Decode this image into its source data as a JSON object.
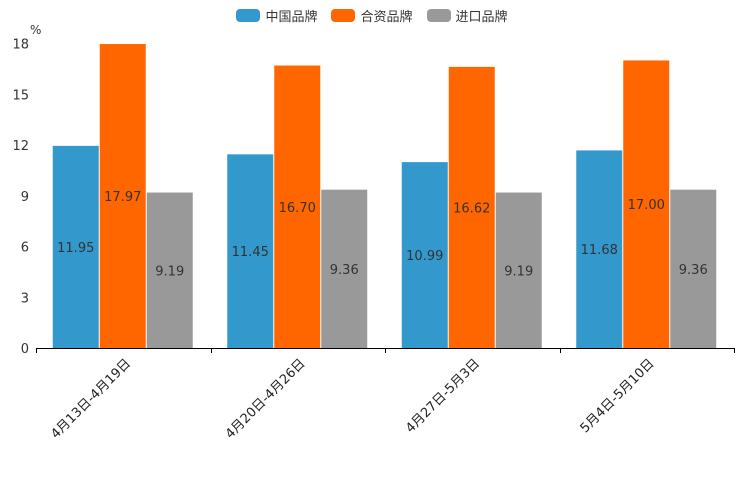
{
  "chart_data": {
    "type": "bar",
    "unit_label": "%",
    "categories": [
      "4月13日-4月19日",
      "4月20日-4月26日",
      "4月27日-5月3日",
      "5月4日-5月10日"
    ],
    "series": [
      {
        "name": "中国品牌",
        "color": "#3399CC",
        "values": [
          11.95,
          11.45,
          10.99,
          11.68
        ],
        "labels": [
          "11.95",
          "11.45",
          "10.99",
          "11.68"
        ]
      },
      {
        "name": "合资品牌",
        "color": "#FF6600",
        "values": [
          17.97,
          16.7,
          16.62,
          17.0
        ],
        "labels": [
          "17.97",
          "16.70",
          "16.62",
          "17.00"
        ]
      },
      {
        "name": "进口品牌",
        "color": "#999999",
        "values": [
          9.19,
          9.36,
          9.19,
          9.36
        ],
        "labels": [
          "9.19",
          "9.36",
          "9.19",
          "9.36"
        ]
      }
    ],
    "yticks": [
      0,
      3,
      6,
      9,
      12,
      15,
      18
    ],
    "ylim": [
      0,
      18.8
    ],
    "legend_position": "top-center",
    "grid": false
  }
}
